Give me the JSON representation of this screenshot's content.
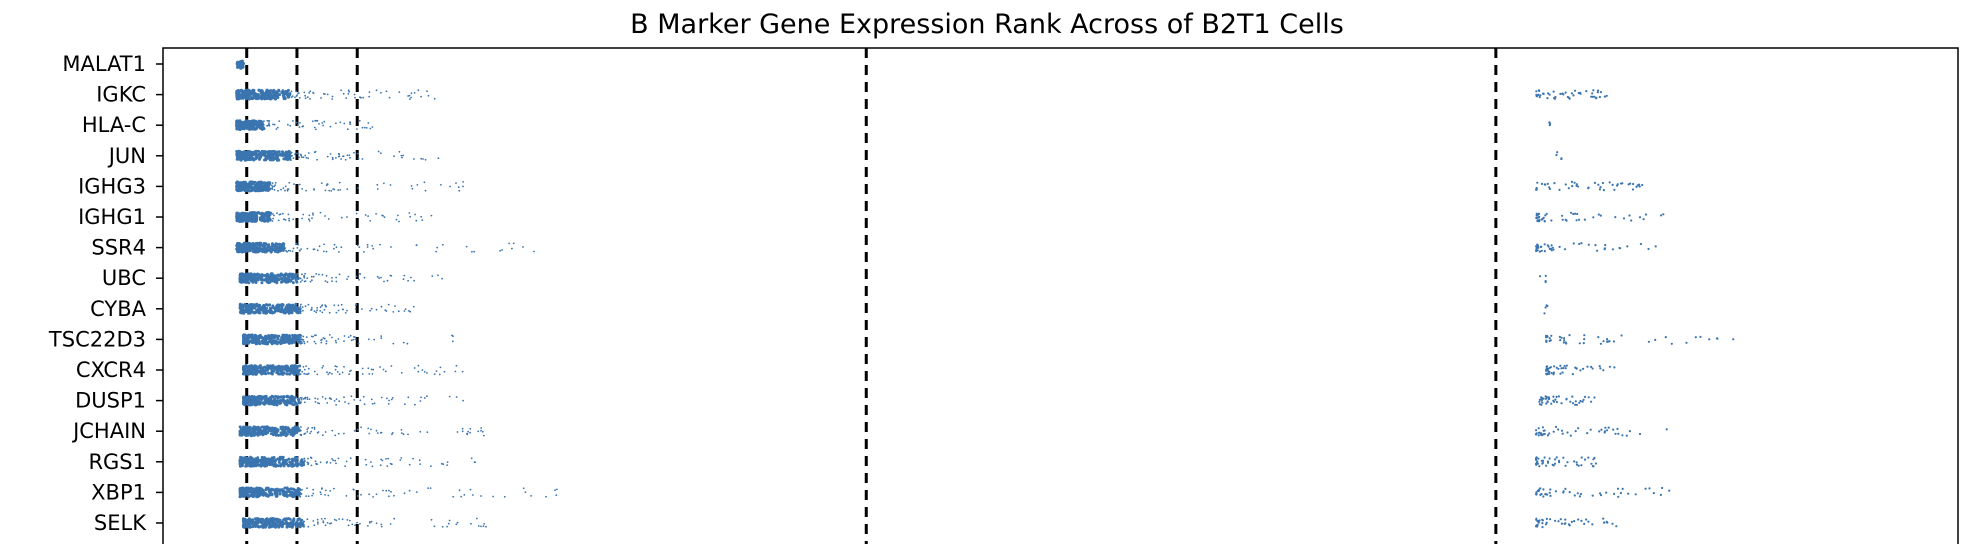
{
  "chart_data": {
    "type": "scatter",
    "title": "B Marker Gene Expression Rank Across of B2T1 Cells",
    "xlabel": "",
    "ylabel": "",
    "xlim": [
      -80,
      2600
    ],
    "grid": false,
    "legend": "none",
    "point_color": "#3B75AF",
    "categories": [
      "MALAT1",
      "IGKC",
      "HLA-C",
      "JUN",
      "IGHG3",
      "IGHG1",
      "SSR4",
      "UBC",
      "CYBA",
      "TSC22D3",
      "CXCR4",
      "DUSP1",
      "JCHAIN",
      "RGS1",
      "XBP1",
      "SELK"
    ],
    "reference_lines_x": [
      45,
      120,
      210,
      970,
      1910
    ],
    "series": [
      {
        "category": "MALAT1",
        "dense_range": [
          30,
          40
        ],
        "tail_max": 40,
        "far_range": null
      },
      {
        "category": "IGKC",
        "dense_range": [
          30,
          110
        ],
        "tail_max": 330,
        "far_range": [
          1970,
          2080
        ]
      },
      {
        "category": "HLA-C",
        "dense_range": [
          30,
          70
        ],
        "tail_max": 250,
        "far_range": [
          1990,
          1995
        ]
      },
      {
        "category": "JUN",
        "dense_range": [
          30,
          110
        ],
        "tail_max": 340,
        "far_range": [
          2000,
          2010
        ]
      },
      {
        "category": "IGHG3",
        "dense_range": [
          30,
          80
        ],
        "tail_max": 380,
        "far_range": [
          1970,
          2130
        ]
      },
      {
        "category": "IGHG1",
        "dense_range": [
          30,
          80
        ],
        "tail_max": 330,
        "far_range": [
          1970,
          2170
        ]
      },
      {
        "category": "SSR4",
        "dense_range": [
          30,
          100
        ],
        "tail_max": 490,
        "far_range": [
          1970,
          2170
        ]
      },
      {
        "category": "UBC",
        "dense_range": [
          35,
          120
        ],
        "tail_max": 350,
        "far_range": [
          1975,
          2010
        ]
      },
      {
        "category": "CYBA",
        "dense_range": [
          35,
          125
        ],
        "tail_max": 300,
        "far_range": [
          1980,
          2000
        ]
      },
      {
        "category": "TSC22D3",
        "dense_range": [
          40,
          125
        ],
        "tail_max": 360,
        "far_range": [
          1985,
          2270
        ]
      },
      {
        "category": "CXCR4",
        "dense_range": [
          40,
          125
        ],
        "tail_max": 400,
        "far_range": [
          1985,
          2090
        ]
      },
      {
        "category": "DUSP1",
        "dense_range": [
          40,
          125
        ],
        "tail_max": 370,
        "far_range": [
          1975,
          2060
        ]
      },
      {
        "category": "JCHAIN",
        "dense_range": [
          35,
          125
        ],
        "tail_max": 400,
        "far_range": [
          1970,
          2170
        ]
      },
      {
        "category": "RGS1",
        "dense_range": [
          35,
          130
        ],
        "tail_max": 390,
        "far_range": [
          1970,
          2060
        ]
      },
      {
        "category": "XBP1",
        "dense_range": [
          35,
          125
        ],
        "tail_max": 530,
        "far_range": [
          1970,
          2170
        ]
      },
      {
        "category": "SELK",
        "dense_range": [
          40,
          130
        ],
        "tail_max": 410,
        "far_range": [
          1970,
          2090
        ]
      }
    ]
  }
}
